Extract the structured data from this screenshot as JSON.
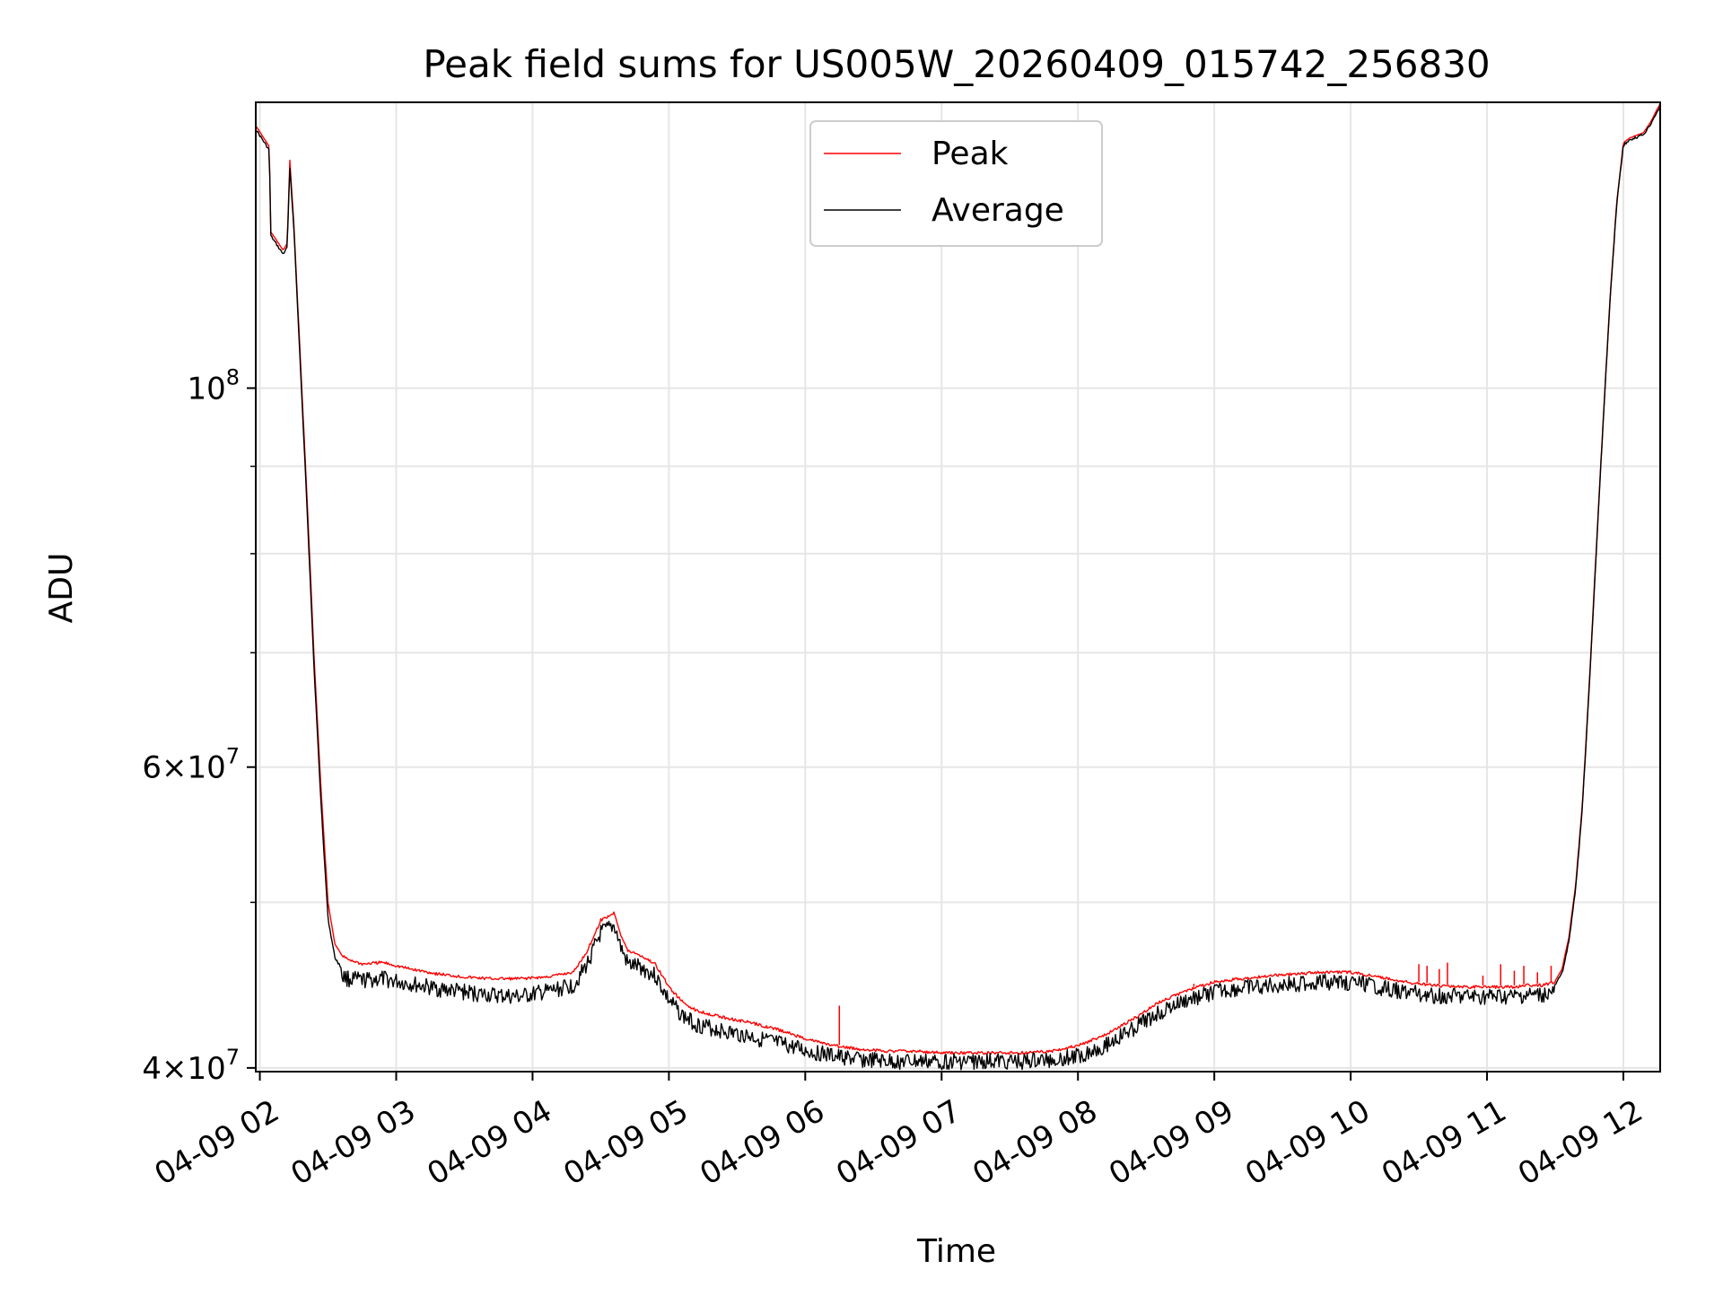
{
  "chart_data": {
    "type": "line",
    "title": "Peak field sums for US005W_20260409_015742_256830",
    "xlabel": "Time",
    "ylabel": "ADU",
    "yscale": "log",
    "xlim": [
      1.97,
      12.27
    ],
    "ylim": [
      39800000,
      147000000
    ],
    "grid": true,
    "legend": {
      "location": "upper center",
      "entries": [
        "Peak",
        "Average"
      ]
    },
    "x_ticks": [
      {
        "value": 2,
        "label": "04-09 02"
      },
      {
        "value": 3,
        "label": "04-09 03"
      },
      {
        "value": 4,
        "label": "04-09 04"
      },
      {
        "value": 5,
        "label": "04-09 05"
      },
      {
        "value": 6,
        "label": "04-09 06"
      },
      {
        "value": 7,
        "label": "04-09 07"
      },
      {
        "value": 8,
        "label": "04-09 08"
      },
      {
        "value": 9,
        "label": "04-09 09"
      },
      {
        "value": 10,
        "label": "04-09 10"
      },
      {
        "value": 11,
        "label": "04-09 11"
      },
      {
        "value": 12,
        "label": "04-09 12"
      }
    ],
    "y_major_ticks": [
      {
        "value": 100000000,
        "base": "10",
        "exp": "8",
        "mant": ""
      },
      {
        "value": 60000000,
        "base": "10",
        "exp": "7",
        "mant": "6"
      },
      {
        "value": 40000000,
        "base": "10",
        "exp": "7",
        "mant": "4"
      }
    ],
    "y_minor_ticks": [
      50000000,
      70000000,
      80000000,
      90000000
    ],
    "series": [
      {
        "name": "Average",
        "color": "#000000",
        "x": [
          1.97,
          2.07,
          2.08,
          2.17,
          2.2,
          2.22,
          2.25,
          2.3,
          2.35,
          2.4,
          2.45,
          2.5,
          2.55,
          2.6,
          2.65,
          2.75,
          2.9,
          3.1,
          3.3,
          3.5,
          3.7,
          3.9,
          4.1,
          4.3,
          4.4,
          4.5,
          4.6,
          4.65,
          4.7,
          4.75,
          4.8,
          4.9,
          5.0,
          5.1,
          5.2,
          5.4,
          5.6,
          5.8,
          6.0,
          6.2,
          6.4,
          6.6,
          6.8,
          7.0,
          7.2,
          7.4,
          7.6,
          7.8,
          8.0,
          8.2,
          8.4,
          8.6,
          8.8,
          9.0,
          9.2,
          9.4,
          9.6,
          9.8,
          10.0,
          10.2,
          10.4,
          10.6,
          10.8,
          11.0,
          11.2,
          11.3,
          11.4,
          11.5,
          11.55,
          11.6,
          11.65,
          11.7,
          11.75,
          11.8,
          11.85,
          11.9,
          11.95,
          12.0,
          12.05,
          12.1,
          12.15,
          12.2,
          12.27
        ],
        "values": [
          142000000,
          138000000,
          123000000,
          120000000,
          121000000,
          135000000,
          124000000,
          102000000,
          84000000,
          68000000,
          57000000,
          49000000,
          46500000,
          45800000,
          45600000,
          45500000,
          45600000,
          45300000,
          45000000,
          44800000,
          44600000,
          44500000,
          44800000,
          45200000,
          46500000,
          48500000,
          49000000,
          47500000,
          46500000,
          46400000,
          46300000,
          45800000,
          44300000,
          43400000,
          42900000,
          42500000,
          42200000,
          41800000,
          41400000,
          41100000,
          40900000,
          40800000,
          40800000,
          40800000,
          40800000,
          40800000,
          40800000,
          40900000,
          41100000,
          41700000,
          42600000,
          43600000,
          44300000,
          44800000,
          45000000,
          45200000,
          45300000,
          45400000,
          45400000,
          45100000,
          44800000,
          44600000,
          44500000,
          44500000,
          44500000,
          44600000,
          44600000,
          44800000,
          45500000,
          47500000,
          51000000,
          57000000,
          67000000,
          80000000,
          95000000,
          112000000,
          128000000,
          139000000,
          140000000,
          140500000,
          141000000,
          143000000,
          146500000
        ]
      },
      {
        "name": "Peak",
        "color": "#ff0000",
        "x": [
          1.97,
          2.07,
          2.08,
          2.17,
          2.2,
          2.22,
          2.25,
          2.3,
          2.35,
          2.4,
          2.45,
          2.5,
          2.55,
          2.6,
          2.65,
          2.75,
          2.9,
          3.1,
          3.3,
          3.5,
          3.7,
          3.9,
          4.1,
          4.3,
          4.4,
          4.5,
          4.6,
          4.65,
          4.7,
          4.75,
          4.8,
          4.9,
          5.0,
          5.1,
          5.2,
          5.4,
          5.6,
          5.8,
          6.0,
          6.2,
          6.4,
          6.6,
          6.8,
          7.0,
          7.2,
          7.4,
          7.6,
          7.8,
          8.0,
          8.2,
          8.4,
          8.6,
          8.8,
          9.0,
          9.2,
          9.4,
          9.6,
          9.8,
          10.0,
          10.2,
          10.4,
          10.6,
          10.8,
          11.0,
          11.2,
          11.3,
          11.4,
          11.5,
          11.55,
          11.6,
          11.65,
          11.7,
          11.75,
          11.8,
          11.85,
          11.9,
          11.95,
          12.0,
          12.05,
          12.1,
          12.15,
          12.2,
          12.27
        ],
        "values": [
          142500000,
          138500000,
          123500000,
          120500000,
          121500000,
          136000000,
          124500000,
          103000000,
          85000000,
          69000000,
          58000000,
          50000000,
          47300000,
          46600000,
          46400000,
          46100000,
          46200000,
          45800000,
          45500000,
          45300000,
          45200000,
          45200000,
          45300000,
          45600000,
          46900000,
          48900000,
          49400000,
          47900000,
          46900000,
          46800000,
          46600000,
          46100000,
          44700000,
          43800000,
          43300000,
          42900000,
          42600000,
          42200000,
          41700000,
          41300000,
          41100000,
          41000000,
          41000000,
          40900000,
          40900000,
          40900000,
          40900000,
          41000000,
          41300000,
          41900000,
          42800000,
          43800000,
          44500000,
          45000000,
          45200000,
          45400000,
          45500000,
          45600000,
          45600000,
          45300000,
          45000000,
          44800000,
          44700000,
          44700000,
          44700000,
          44800000,
          44800000,
          45000000,
          45700000,
          47700000,
          51200000,
          57200000,
          67200000,
          80200000,
          95200000,
          112200000,
          128200000,
          139200000,
          140200000,
          140700000,
          141200000,
          143200000,
          146800000
        ]
      }
    ],
    "peak_spikes": [
      {
        "x": 6.25,
        "y": 43500000
      },
      {
        "x": 8.85,
        "y": 44800000
      },
      {
        "x": 10.5,
        "y": 46000000
      },
      {
        "x": 10.56,
        "y": 45900000
      },
      {
        "x": 10.65,
        "y": 45700000
      },
      {
        "x": 10.71,
        "y": 46100000
      },
      {
        "x": 10.97,
        "y": 45300000
      },
      {
        "x": 11.1,
        "y": 46000000
      },
      {
        "x": 11.2,
        "y": 45600000
      },
      {
        "x": 11.27,
        "y": 45900000
      },
      {
        "x": 11.37,
        "y": 45500000
      },
      {
        "x": 11.47,
        "y": 45900000
      }
    ]
  }
}
